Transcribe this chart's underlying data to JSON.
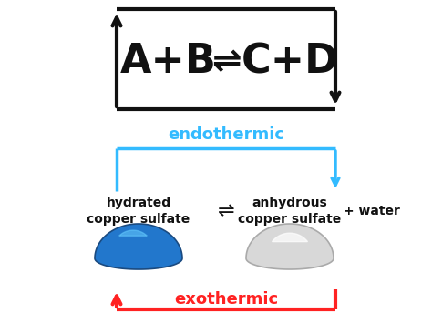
{
  "bg_color": "#ffffff",
  "arrow_color_black": "#111111",
  "arrow_color_blue": "#33bbff",
  "arrow_color_red": "#ff2222",
  "text_color_black": "#111111",
  "text_color_blue": "#33bbff",
  "text_color_red": "#ff2222",
  "title_left": "A+B",
  "title_right": "C+D",
  "equilibrium_symbol": "⇌",
  "label_hydrated": "hydrated\ncopper sulfate",
  "label_anhydrous": "anhydrous\ncopper sulfate",
  "label_water": "+ water",
  "label_endothermic": "endothermic",
  "label_exothermic": "exothermic"
}
